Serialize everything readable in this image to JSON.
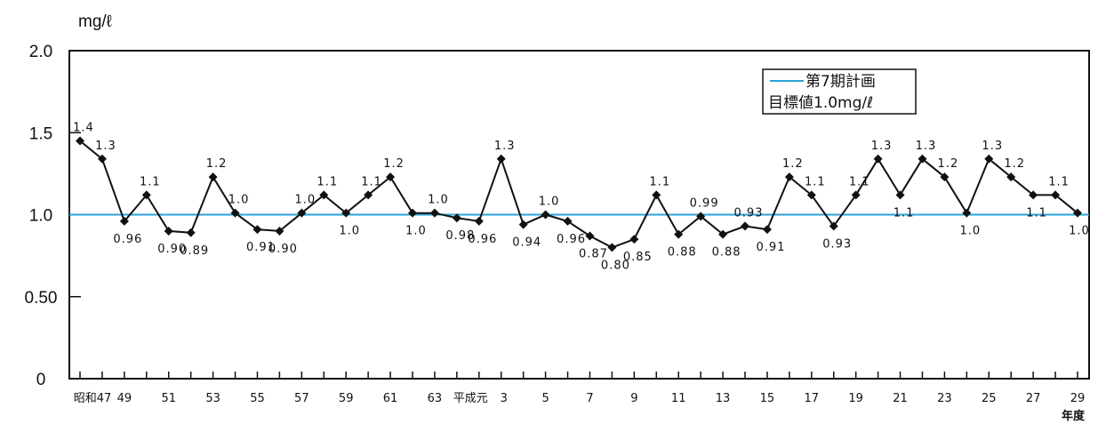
{
  "chart_data": {
    "type": "line",
    "ylabel": "mg/ℓ",
    "xlabel_unit": "年度",
    "ylim": [
      0,
      2.0
    ],
    "yticks": [
      "0",
      "0.50",
      "1.0",
      "1.5",
      "2.0"
    ],
    "ytick_values": [
      0,
      0.5,
      1.0,
      1.5,
      2.0
    ],
    "grid": false,
    "legend_position": "top-right",
    "target_line": {
      "value": 1.0,
      "color": "#2aa3d8",
      "legend_line1": "第7期計画",
      "legend_line2": "目標値1.0mg/ℓ"
    },
    "xtick_labels": [
      "昭和47",
      "49",
      "51",
      "53",
      "55",
      "57",
      "59",
      "61",
      "63",
      "平成元",
      "3",
      "5",
      "7",
      "9",
      "11",
      "13",
      "15",
      "17",
      "19",
      "21",
      "23",
      "25",
      "27",
      "29"
    ],
    "xtick_indices": [
      0,
      2,
      4,
      6,
      8,
      10,
      12,
      14,
      16,
      18,
      19,
      21,
      23,
      25,
      27,
      29,
      31,
      33,
      35,
      37,
      39,
      41,
      43,
      45
    ],
    "series": [
      {
        "color": "#111111",
        "values": [
          1.45,
          1.34,
          0.96,
          1.12,
          0.9,
          0.89,
          1.23,
          1.01,
          0.91,
          0.9,
          1.01,
          1.12,
          1.01,
          1.12,
          1.23,
          1.01,
          1.01,
          0.98,
          0.96,
          1.34,
          0.94,
          1.0,
          0.96,
          0.87,
          0.8,
          0.85,
          1.12,
          0.88,
          0.99,
          0.88,
          0.93,
          0.91,
          1.23,
          1.12,
          0.93,
          1.12,
          1.34,
          1.12,
          1.34,
          1.23,
          1.01,
          1.34,
          1.23,
          1.12,
          1.12,
          1.01
        ],
        "labels": [
          "1.4",
          "1.3",
          "0.96",
          "1.1",
          "0.90",
          "0.89",
          "1.2",
          "1.0",
          "0.91",
          "0.90",
          "1.0",
          "1.1",
          "1.0",
          "1.1",
          "1.2",
          "1.0",
          "1.0",
          "0.98",
          "0.96",
          "1.3",
          "0.94",
          "1.0",
          "0.96",
          "0.87",
          "0.80",
          "0.85",
          "1.1",
          "0.88",
          "0.99",
          "0.88",
          "0.93",
          "0.91",
          "1.2",
          "1.1",
          "0.93",
          "1.1",
          "1.3",
          "1.1",
          "1.3",
          "1.2",
          "1.0",
          "1.3",
          "1.2",
          "1.1",
          "1.1",
          "1.0"
        ]
      }
    ]
  }
}
